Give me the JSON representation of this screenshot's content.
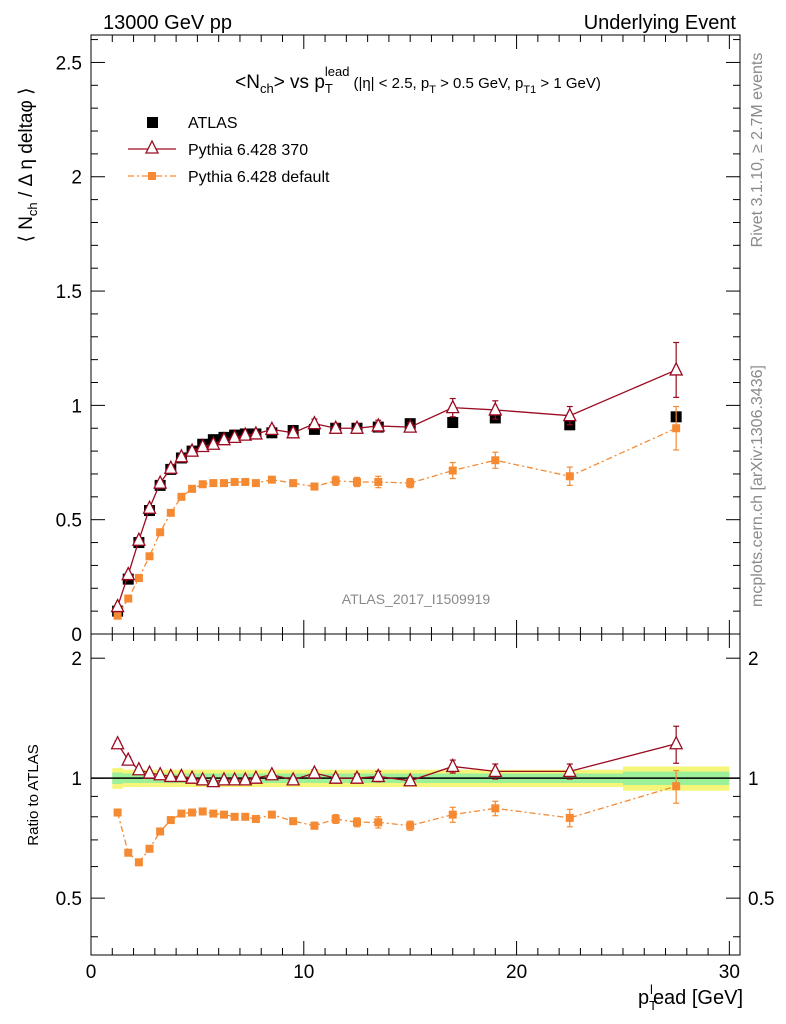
{
  "header": {
    "left_label": "13000 GeV pp",
    "right_label": "Underlying Event"
  },
  "side": {
    "rivet_label": "Rivet 3.1.10, ≥ 2.7M events",
    "mcplots_label": "mcplots.cern.ch [arXiv:1306.3436]"
  },
  "chart_data": {
    "type": "scatter",
    "title": {
      "main": "<N",
      "main_sub": "ch",
      "main_after": "> vs p",
      "main_sub2": "T",
      "main_sup2": "lead",
      "cuts": "(|η| < 2.5, p",
      "cuts_sub": "T",
      "cuts_mid": " > 0.5 GeV, p",
      "cuts_sub2": "T1",
      "cuts_end": " > 1 GeV)"
    },
    "analysis_label": "ATLAS_2017_I1509919",
    "ylabel": {
      "pre": "⟨ N",
      "sub": "ch",
      "post": " / Δ η deltaφ ⟩"
    },
    "ratio_ylabel": "Ratio to ATLAS",
    "xlabel": {
      "pre": "p",
      "sub": "T",
      "sup": "l",
      "post": "ead [GeV]"
    },
    "xlim": [
      0,
      30.5
    ],
    "ylim": [
      0,
      2.62
    ],
    "ratio_ylim": [
      0.36,
      2.3
    ],
    "x_ticks": [
      "0",
      "10",
      "20",
      "30"
    ],
    "y_ticks": [
      "0",
      "0.5",
      "1",
      "1.5",
      "2",
      "2.5"
    ],
    "ratio_ticks": [
      "0.5",
      "1",
      "2"
    ],
    "legend": [
      "ATLAS",
      "Pythia 6.428 370",
      "Pythia 6.428 default"
    ],
    "x": [
      1.25,
      1.75,
      2.25,
      2.75,
      3.25,
      3.75,
      4.25,
      4.75,
      5.25,
      5.75,
      6.25,
      6.75,
      7.25,
      7.75,
      8.5,
      9.5,
      10.5,
      11.5,
      12.5,
      13.5,
      15.0,
      17.0,
      19.0,
      22.5,
      27.5
    ],
    "series": [
      {
        "name": "ATLAS",
        "values": [
          0.1,
          0.24,
          0.4,
          0.54,
          0.65,
          0.72,
          0.77,
          0.8,
          0.83,
          0.85,
          0.86,
          0.87,
          0.875,
          0.875,
          0.88,
          0.89,
          0.895,
          0.9,
          0.9,
          0.905,
          0.92,
          0.925,
          0.945,
          0.915,
          0.95
        ],
        "ratio": [
          1.0,
          1.0,
          1.0,
          1.0,
          1.0,
          1.0,
          1.0,
          1.0,
          1.0,
          1.0,
          1.0,
          1.0,
          1.0,
          1.0,
          1.0,
          1.0,
          1.0,
          1.0,
          1.0,
          1.0,
          1.0,
          1.0,
          1.0,
          1.0,
          1.0
        ],
        "color": "#000000"
      },
      {
        "name": "Pythia 6.428 370",
        "values": [
          0.12,
          0.26,
          0.41,
          0.55,
          0.66,
          0.725,
          0.775,
          0.8,
          0.82,
          0.83,
          0.85,
          0.86,
          0.87,
          0.875,
          0.895,
          0.88,
          0.92,
          0.9,
          0.9,
          0.91,
          0.905,
          0.99,
          0.98,
          0.955,
          1.155
        ],
        "errors": [
          0.01,
          0.01,
          0.01,
          0.01,
          0.01,
          0.01,
          0.01,
          0.01,
          0.01,
          0.01,
          0.01,
          0.01,
          0.01,
          0.01,
          0.015,
          0.015,
          0.02,
          0.02,
          0.02,
          0.025,
          0.02,
          0.04,
          0.04,
          0.04,
          0.12
        ],
        "ratio": [
          1.22,
          1.11,
          1.05,
          1.03,
          1.02,
          1.01,
          1.01,
          1.0,
          0.99,
          0.98,
          0.99,
          0.99,
          0.99,
          1.0,
          1.02,
          0.99,
          1.03,
          1.0,
          1.0,
          1.01,
          0.985,
          1.07,
          1.04,
          1.04,
          1.22
        ],
        "ratio_errors": [
          0.02,
          0.02,
          0.01,
          0.01,
          0.01,
          0.01,
          0.01,
          0.01,
          0.01,
          0.01,
          0.01,
          0.01,
          0.01,
          0.01,
          0.015,
          0.015,
          0.02,
          0.02,
          0.025,
          0.03,
          0.02,
          0.04,
          0.045,
          0.045,
          0.13
        ],
        "color": "#9a0a20"
      },
      {
        "name": "Pythia 6.428 default",
        "values": [
          0.08,
          0.155,
          0.245,
          0.34,
          0.445,
          0.53,
          0.6,
          0.635,
          0.655,
          0.66,
          0.66,
          0.665,
          0.665,
          0.66,
          0.675,
          0.66,
          0.645,
          0.67,
          0.665,
          0.665,
          0.66,
          0.715,
          0.76,
          0.69,
          0.9
        ],
        "errors": [
          0.005,
          0.005,
          0.005,
          0.005,
          0.005,
          0.005,
          0.005,
          0.005,
          0.005,
          0.005,
          0.005,
          0.005,
          0.005,
          0.005,
          0.01,
          0.01,
          0.015,
          0.02,
          0.02,
          0.025,
          0.02,
          0.035,
          0.035,
          0.04,
          0.095
        ],
        "ratio": [
          0.82,
          0.65,
          0.615,
          0.665,
          0.735,
          0.785,
          0.815,
          0.82,
          0.825,
          0.815,
          0.81,
          0.8,
          0.8,
          0.79,
          0.81,
          0.78,
          0.76,
          0.79,
          0.775,
          0.775,
          0.76,
          0.81,
          0.84,
          0.795,
          0.955
        ],
        "ratio_errors": [
          0.005,
          0.005,
          0.005,
          0.005,
          0.005,
          0.005,
          0.005,
          0.005,
          0.005,
          0.005,
          0.005,
          0.005,
          0.005,
          0.005,
          0.01,
          0.01,
          0.015,
          0.02,
          0.02,
          0.025,
          0.02,
          0.035,
          0.035,
          0.04,
          0.09
        ],
        "color": "#f58a33"
      }
    ],
    "band_colors": [
      "#f5f57a",
      "#9cf09a"
    ]
  }
}
